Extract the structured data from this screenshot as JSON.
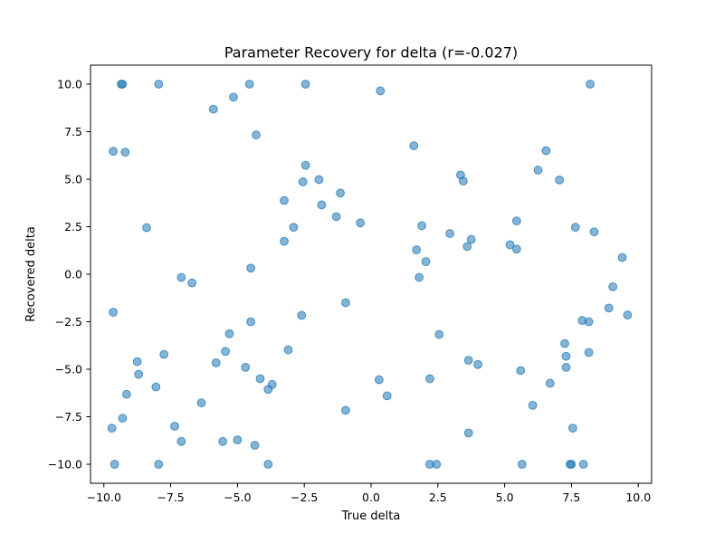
{
  "chart_data": {
    "type": "scatter",
    "title": "Parameter Recovery for delta (r=-0.027)",
    "xlabel": "True delta",
    "ylabel": "Recovered delta",
    "xlim": [
      -10.5,
      10.5
    ],
    "ylim": [
      -11.0,
      11.0
    ],
    "xticks": [
      -10.0,
      -7.5,
      -5.0,
      -2.5,
      0.0,
      2.5,
      5.0,
      7.5,
      10.0
    ],
    "xtick_labels": [
      "−10.0",
      "−7.5",
      "−5.0",
      "−2.5",
      "0.0",
      "2.5",
      "5.0",
      "7.5",
      "10.0"
    ],
    "yticks": [
      -10.0,
      -7.5,
      -5.0,
      -2.5,
      0.0,
      2.5,
      5.0,
      7.5,
      10.0
    ],
    "ytick_labels": [
      "−10.0",
      "−7.5",
      "−5.0",
      "−2.5",
      "0.0",
      "2.5",
      "5.0",
      "7.5",
      "10.0"
    ],
    "grid": false,
    "marker_color": "#1f77b4",
    "marker_alpha": 0.55,
    "points": [
      [
        -9.35,
        10.0
      ],
      [
        -9.3,
        10.0
      ],
      [
        -7.95,
        10.0
      ],
      [
        -4.55,
        10.0
      ],
      [
        -2.45,
        10.0
      ],
      [
        8.2,
        10.0
      ],
      [
        0.35,
        9.65
      ],
      [
        -5.15,
        9.32
      ],
      [
        -5.9,
        8.68
      ],
      [
        -4.3,
        7.33
      ],
      [
        1.6,
        6.76
      ],
      [
        -9.65,
        6.47
      ],
      [
        -9.2,
        6.42
      ],
      [
        6.55,
        6.5
      ],
      [
        -2.45,
        5.73
      ],
      [
        6.25,
        5.48
      ],
      [
        3.35,
        5.22
      ],
      [
        -2.55,
        4.86
      ],
      [
        -1.95,
        4.98
      ],
      [
        3.45,
        4.9
      ],
      [
        7.05,
        4.96
      ],
      [
        -1.15,
        4.27
      ],
      [
        -3.25,
        3.88
      ],
      [
        -1.85,
        3.65
      ],
      [
        -1.3,
        3.03
      ],
      [
        -0.4,
        2.7
      ],
      [
        -8.4,
        2.45
      ],
      [
        -2.9,
        2.47
      ],
      [
        1.9,
        2.55
      ],
      [
        7.65,
        2.47
      ],
      [
        8.35,
        2.23
      ],
      [
        2.95,
        2.14
      ],
      [
        5.45,
        2.8
      ],
      [
        -3.25,
        1.73
      ],
      [
        3.75,
        1.83
      ],
      [
        3.6,
        1.46
      ],
      [
        5.2,
        1.55
      ],
      [
        5.45,
        1.32
      ],
      [
        1.7,
        1.28
      ],
      [
        2.05,
        0.66
      ],
      [
        9.4,
        0.88
      ],
      [
        -4.5,
        0.32
      ],
      [
        -7.1,
        -0.17
      ],
      [
        1.8,
        -0.17
      ],
      [
        -6.7,
        -0.46
      ],
      [
        9.05,
        -0.66
      ],
      [
        -0.95,
        -1.5
      ],
      [
        8.9,
        -1.78
      ],
      [
        -9.65,
        -2.0
      ],
      [
        -2.6,
        -2.16
      ],
      [
        9.6,
        -2.15
      ],
      [
        -4.5,
        -2.5
      ],
      [
        8.15,
        -2.5
      ],
      [
        7.9,
        -2.43
      ],
      [
        -5.3,
        -3.13
      ],
      [
        2.55,
        -3.17
      ],
      [
        7.25,
        -3.65
      ],
      [
        -3.1,
        -3.98
      ],
      [
        -5.45,
        -4.06
      ],
      [
        -7.75,
        -4.22
      ],
      [
        8.15,
        -4.12
      ],
      [
        7.3,
        -4.32
      ],
      [
        -8.75,
        -4.6
      ],
      [
        3.65,
        -4.53
      ],
      [
        -5.8,
        -4.66
      ],
      [
        4.0,
        -4.75
      ],
      [
        -4.7,
        -4.9
      ],
      [
        7.3,
        -4.9
      ],
      [
        5.6,
        -5.07
      ],
      [
        -8.7,
        -5.27
      ],
      [
        -4.15,
        -5.5
      ],
      [
        0.3,
        -5.55
      ],
      [
        2.2,
        -5.5
      ],
      [
        -3.7,
        -5.8
      ],
      [
        6.7,
        -5.74
      ],
      [
        -8.05,
        -5.93
      ],
      [
        -3.85,
        -6.06
      ],
      [
        -9.15,
        -6.32
      ],
      [
        0.6,
        -6.4
      ],
      [
        -6.35,
        -6.77
      ],
      [
        6.05,
        -6.9
      ],
      [
        -0.95,
        -7.16
      ],
      [
        -9.3,
        -7.58
      ],
      [
        -7.35,
        -8.0
      ],
      [
        -9.7,
        -8.1
      ],
      [
        7.55,
        -8.1
      ],
      [
        3.65,
        -8.35
      ],
      [
        -7.1,
        -8.8
      ],
      [
        -5.55,
        -8.8
      ],
      [
        -5.0,
        -8.72
      ],
      [
        -4.35,
        -9.0
      ],
      [
        -9.6,
        -10.0
      ],
      [
        -7.95,
        -10.0
      ],
      [
        -3.85,
        -10.0
      ],
      [
        2.2,
        -10.0
      ],
      [
        2.45,
        -10.0
      ],
      [
        5.65,
        -10.0
      ],
      [
        7.45,
        -10.0
      ],
      [
        7.5,
        -10.0
      ],
      [
        7.95,
        -10.0
      ]
    ]
  }
}
